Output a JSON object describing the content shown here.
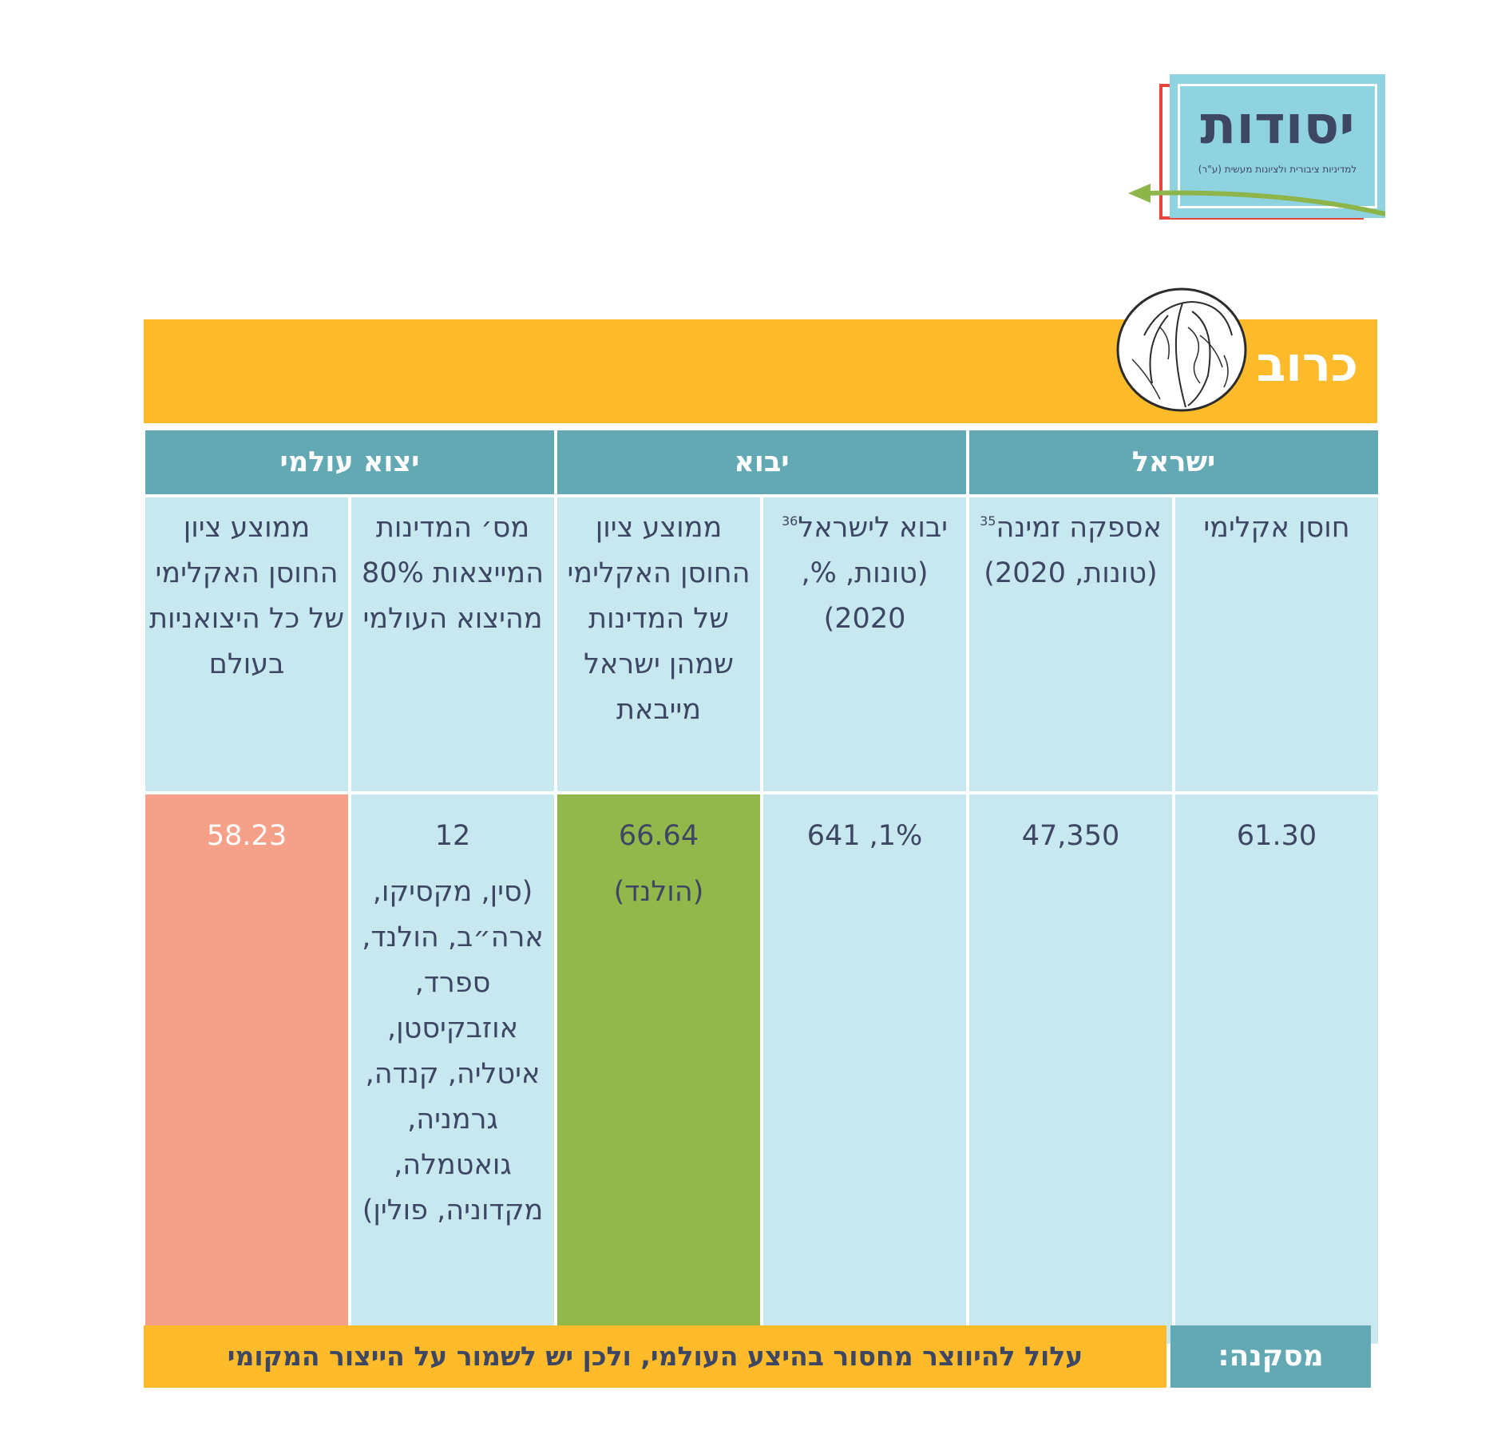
{
  "logo": {
    "title": "יסודות",
    "subtitle": "למדיניות ציבורית ולציונות מעשית (ע\"ר)"
  },
  "section": {
    "title": "כרוב",
    "image": "cabbage-illustration"
  },
  "table": {
    "groups": [
      "ישראל",
      "יבוא",
      "יצוא עולמי"
    ],
    "columns": [
      {
        "label": "חוסן אקלימי",
        "note": ""
      },
      {
        "label": "אספקה זמינה",
        "note": "35",
        "label_tail": "(טונות, 2020)"
      },
      {
        "label": "יבוא לישראל",
        "note": "36",
        "label_tail": "(טונות, %, 2020)"
      },
      {
        "label": "ממוצע ציון החוסן האקלימי של המדינות שמהן ישראל מייבאת",
        "note": ""
      },
      {
        "label": "מס׳ המדינות המייצאות 80% מהיצוא העולמי",
        "note": ""
      },
      {
        "label": "ממוצע ציון החוסן האקלימי של כל היצואניות בעולם",
        "note": ""
      }
    ],
    "values": {
      "climate_resilience": "61.30",
      "available_supply": "47,350",
      "import_to_israel": "641 ,1%",
      "import_avg_score": "66.64",
      "import_avg_score_note": "(הולנד)",
      "exporters_count": "12",
      "exporters_list": "(סין, מקסיקו, ארה״ב, הולנד, ספרד, אוזבקיסטן, איטליה, קנדה, גרמניה, גואטמלה, מקדוניה, פולין)",
      "world_avg_score": "58.23"
    },
    "colors": {
      "header": "#62a9b3",
      "cell": "#c8e8ef",
      "good": "#92b74a",
      "bad": "#f5a088",
      "accent": "#fdbb2b"
    }
  },
  "conclusion": {
    "label": "מסקנה:",
    "text": "עלול להיווצר מחסור בהיצע העולמי, ולכן יש לשמור על הייצור המקומי"
  }
}
